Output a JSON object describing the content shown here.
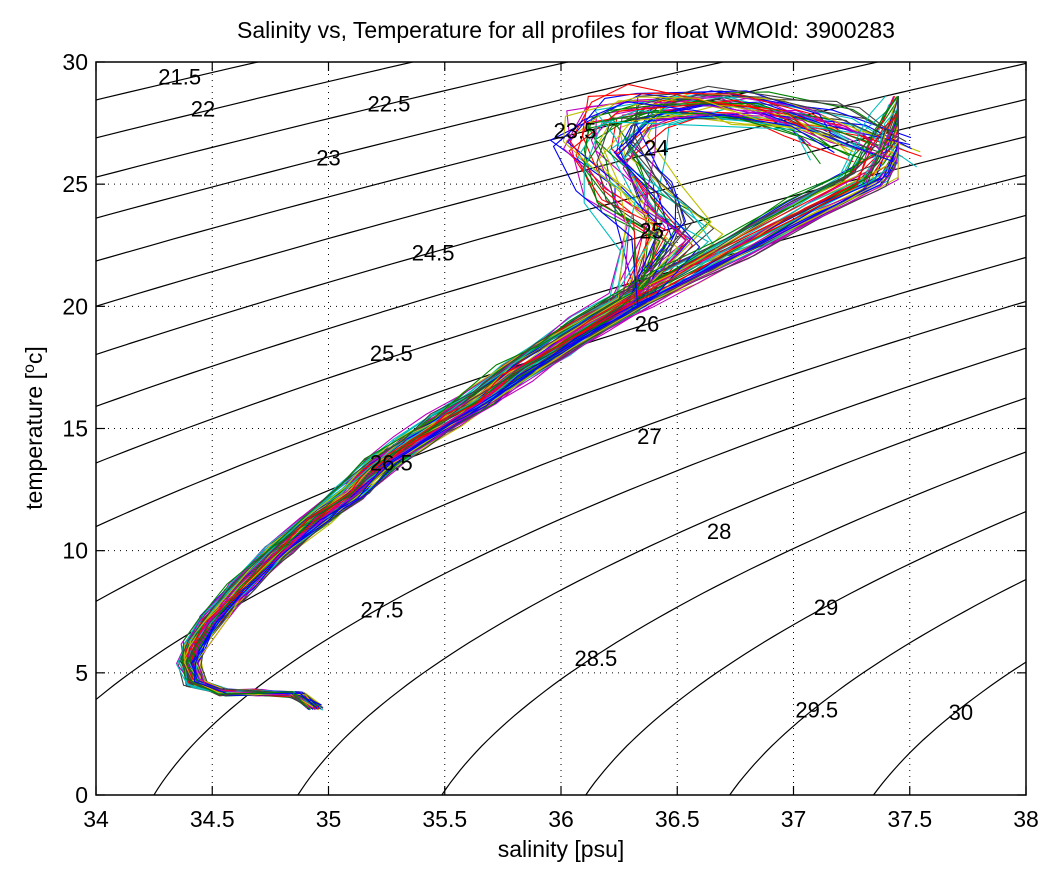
{
  "chart_data": {
    "type": "line",
    "title": "Salinity vs, Temperature for all profiles for float WMOId: 3900283",
    "xlabel": "salinity [psu]",
    "ylabel_main": "temperature [",
    "ylabel_sup": "o",
    "ylabel_tail": "c]",
    "xlim": [
      34,
      38
    ],
    "ylim": [
      0,
      30
    ],
    "xticks": [
      34,
      34.5,
      35,
      35.5,
      36,
      36.5,
      37,
      37.5,
      38
    ],
    "xtick_labels": [
      "34",
      "34.5",
      "35",
      "35.5",
      "36",
      "36.5",
      "37",
      "37.5",
      "38"
    ],
    "yticks": [
      0,
      5,
      10,
      15,
      20,
      25,
      30
    ],
    "ytick_labels": [
      "0",
      "5",
      "10",
      "15",
      "20",
      "25",
      "30"
    ],
    "grid": true,
    "grid_style": "dotted",
    "density_contours": {
      "color": "#000000",
      "levels": [
        21.5,
        22,
        22.5,
        23,
        23.5,
        24,
        24.5,
        25,
        25.5,
        26,
        26.5,
        27,
        27.5,
        28,
        28.5,
        29,
        29.5,
        30
      ],
      "labels": [
        {
          "text": "21.5",
          "x": 34.36,
          "y": 29.4
        },
        {
          "text": "22",
          "x": 34.46,
          "y": 28.1
        },
        {
          "text": "22.5",
          "x": 35.26,
          "y": 28.3
        },
        {
          "text": "23",
          "x": 35.0,
          "y": 26.1
        },
        {
          "text": "23.5",
          "x": 36.06,
          "y": 27.2
        },
        {
          "text": "24",
          "x": 36.41,
          "y": 26.5
        },
        {
          "text": "24.5",
          "x": 35.45,
          "y": 22.2
        },
        {
          "text": "25",
          "x": 36.39,
          "y": 23.1
        },
        {
          "text": "25.5",
          "x": 35.27,
          "y": 18.1
        },
        {
          "text": "26",
          "x": 36.37,
          "y": 19.3
        },
        {
          "text": "26.5",
          "x": 35.27,
          "y": 13.6
        },
        {
          "text": "27",
          "x": 36.38,
          "y": 14.7
        },
        {
          "text": "27.5",
          "x": 35.23,
          "y": 7.6
        },
        {
          "text": "28",
          "x": 36.68,
          "y": 10.8
        },
        {
          "text": "28.5",
          "x": 36.15,
          "y": 5.6
        },
        {
          "text": "29",
          "x": 37.14,
          "y": 7.7
        },
        {
          "text": "29.5",
          "x": 37.1,
          "y": 3.5
        },
        {
          "text": "30",
          "x": 37.72,
          "y": 3.4
        }
      ]
    },
    "profiles": {
      "description_count": 100,
      "colors": [
        "#0000ff",
        "#008000",
        "#ff0000",
        "#00bfbf",
        "#bf00bf",
        "#bfbf00",
        "#404040"
      ],
      "mean_curve": {
        "salinity": [
          34.94,
          34.86,
          34.7,
          34.55,
          34.43,
          34.4,
          34.42,
          34.5,
          34.62,
          34.78,
          34.95,
          35.1,
          35.22,
          35.35,
          35.5,
          35.65,
          35.8,
          35.95,
          36.12,
          36.3,
          36.5,
          36.75,
          37.05,
          37.3
        ],
        "temperature": [
          3.6,
          4.1,
          4.2,
          4.2,
          4.6,
          5.4,
          6.1,
          7.2,
          8.5,
          10.0,
          11.3,
          12.4,
          13.5,
          14.4,
          15.3,
          16.2,
          17.3,
          18.2,
          19.2,
          20.2,
          21.2,
          22.4,
          24.0,
          25.2
        ]
      },
      "mixed_layer_cluster": {
        "salinity": [
          36.45,
          36.3,
          36.2,
          36.25,
          36.5,
          36.8,
          37.1,
          37.3
        ],
        "temperature": [
          23.0,
          24.5,
          26.3,
          27.8,
          28.3,
          28.1,
          27.5,
          26.5
        ]
      },
      "warm_cluster_min_salinity": 35.8,
      "warm_cluster_max_salinity": 37.45,
      "max_temperature": 28.6
    }
  }
}
